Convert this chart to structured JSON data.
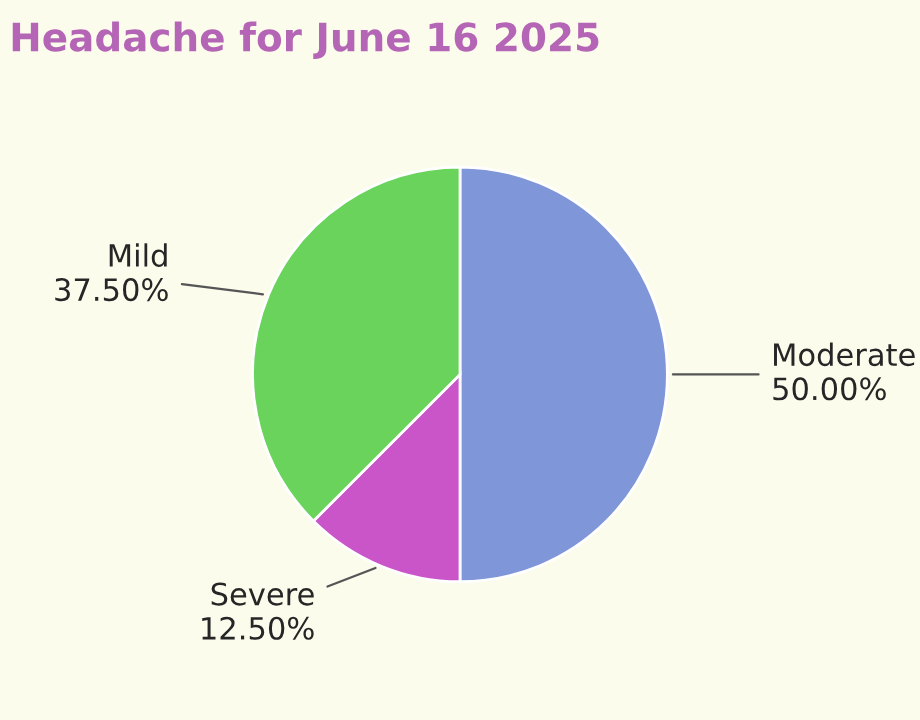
{
  "chart_data": {
    "type": "pie",
    "title": "Headache for June 16 2025",
    "categories": [
      "Moderate",
      "Severe",
      "Mild"
    ],
    "values": [
      50,
      12.5,
      37.5
    ],
    "value_labels": [
      "50.00%",
      "12.50%",
      "37.50%"
    ],
    "colors": [
      "#7f96d8",
      "#c955c9",
      "#69d35b"
    ]
  }
}
